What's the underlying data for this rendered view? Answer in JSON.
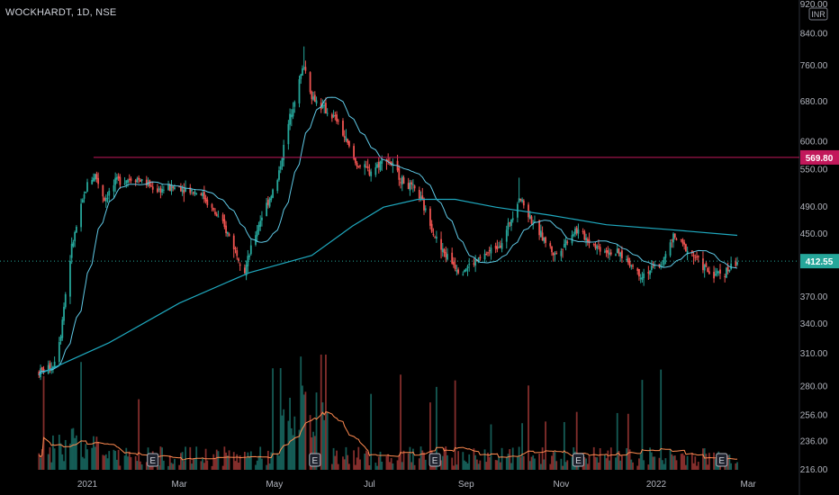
{
  "header": {
    "symbol_line": "WOCKHARDT, 1D, NSE"
  },
  "currency_label": "INR",
  "chart_data": {
    "type": "candlestick",
    "symbol": "WOCKHARDT",
    "interval": "1D",
    "exchange": "NSE",
    "currency": "INR",
    "price_axis": {
      "scale": "log",
      "ticks": [
        920,
        840,
        760,
        680,
        600,
        550,
        490,
        450,
        410,
        370,
        340,
        310,
        280,
        256,
        236,
        216
      ],
      "tick_labels": [
        "920.00",
        "840.00",
        "760.00",
        "680.00",
        "600.00",
        "550.00",
        "490.00",
        "450.00",
        "410.00",
        "370.00",
        "340.00",
        "310.00",
        "280.00",
        "256.00",
        "236.00",
        "216.00"
      ]
    },
    "time_axis": {
      "labels": [
        "2021",
        "Mar",
        "May",
        "Jul",
        "Sep",
        "Nov",
        "2022",
        "Mar"
      ]
    },
    "horizontal_line": {
      "price": 569.8,
      "label": "569.80",
      "color": "#c2185b"
    },
    "last_price": {
      "price": 412.55,
      "label": "412.55"
    },
    "colors": {
      "up": "#26a69a",
      "down": "#ef5350",
      "long_ma": "#1fa9bf",
      "short_ma": "#5fc9e6",
      "volume_ma": "#ff8a50",
      "hline": "#c2185b"
    },
    "earnings_markers": {
      "label": "E",
      "count": 5
    },
    "price_path": [
      {
        "d": "2020-12-01",
        "p": 292
      },
      {
        "d": "2020-12-10",
        "p": 298
      },
      {
        "d": "2020-12-15",
        "p": 330
      },
      {
        "d": "2020-12-22",
        "p": 430
      },
      {
        "d": "2021-01-01",
        "p": 525
      },
      {
        "d": "2021-01-06",
        "p": 540
      },
      {
        "d": "2021-01-12",
        "p": 500
      },
      {
        "d": "2021-01-20",
        "p": 530
      },
      {
        "d": "2021-02-01",
        "p": 535
      },
      {
        "d": "2021-02-15",
        "p": 515
      },
      {
        "d": "2021-03-01",
        "p": 520
      },
      {
        "d": "2021-03-15",
        "p": 510
      },
      {
        "d": "2021-04-01",
        "p": 450
      },
      {
        "d": "2021-04-12",
        "p": 400
      },
      {
        "d": "2021-04-22",
        "p": 470
      },
      {
        "d": "2021-05-03",
        "p": 530
      },
      {
        "d": "2021-05-12",
        "p": 660
      },
      {
        "d": "2021-05-20",
        "p": 760
      },
      {
        "d": "2021-05-25",
        "p": 690
      },
      {
        "d": "2021-06-01",
        "p": 665
      },
      {
        "d": "2021-06-10",
        "p": 640
      },
      {
        "d": "2021-06-22",
        "p": 560
      },
      {
        "d": "2021-07-01",
        "p": 545
      },
      {
        "d": "2021-07-12",
        "p": 570
      },
      {
        "d": "2021-07-22",
        "p": 530
      },
      {
        "d": "2021-08-01",
        "p": 510
      },
      {
        "d": "2021-08-15",
        "p": 430
      },
      {
        "d": "2021-08-28",
        "p": 400
      },
      {
        "d": "2021-09-10",
        "p": 415
      },
      {
        "d": "2021-09-25",
        "p": 440
      },
      {
        "d": "2021-10-05",
        "p": 505
      },
      {
        "d": "2021-10-15",
        "p": 460
      },
      {
        "d": "2021-10-28",
        "p": 420
      },
      {
        "d": "2021-11-10",
        "p": 455
      },
      {
        "d": "2021-11-25",
        "p": 430
      },
      {
        "d": "2021-12-10",
        "p": 420
      },
      {
        "d": "2021-12-22",
        "p": 395
      },
      {
        "d": "2022-01-05",
        "p": 410
      },
      {
        "d": "2022-01-12",
        "p": 445
      },
      {
        "d": "2022-01-25",
        "p": 420
      },
      {
        "d": "2022-02-05",
        "p": 395
      },
      {
        "d": "2022-02-15",
        "p": 400
      },
      {
        "d": "2022-02-22",
        "p": 412.55
      }
    ],
    "long_ma_path": [
      {
        "d": "2020-12-01",
        "p": 290
      },
      {
        "d": "2021-01-15",
        "p": 320
      },
      {
        "d": "2021-03-01",
        "p": 362
      },
      {
        "d": "2021-04-15",
        "p": 398
      },
      {
        "d": "2021-05-25",
        "p": 420
      },
      {
        "d": "2021-06-20",
        "p": 460
      },
      {
        "d": "2021-07-10",
        "p": 488
      },
      {
        "d": "2021-08-01",
        "p": 500
      },
      {
        "d": "2021-08-25",
        "p": 500
      },
      {
        "d": "2021-09-20",
        "p": 488
      },
      {
        "d": "2021-10-25",
        "p": 476
      },
      {
        "d": "2021-11-30",
        "p": 462
      },
      {
        "d": "2022-01-10",
        "p": 455
      },
      {
        "d": "2022-02-22",
        "p": 447
      }
    ],
    "volume_axis_note": "volume bars with moving average at bottom"
  }
}
